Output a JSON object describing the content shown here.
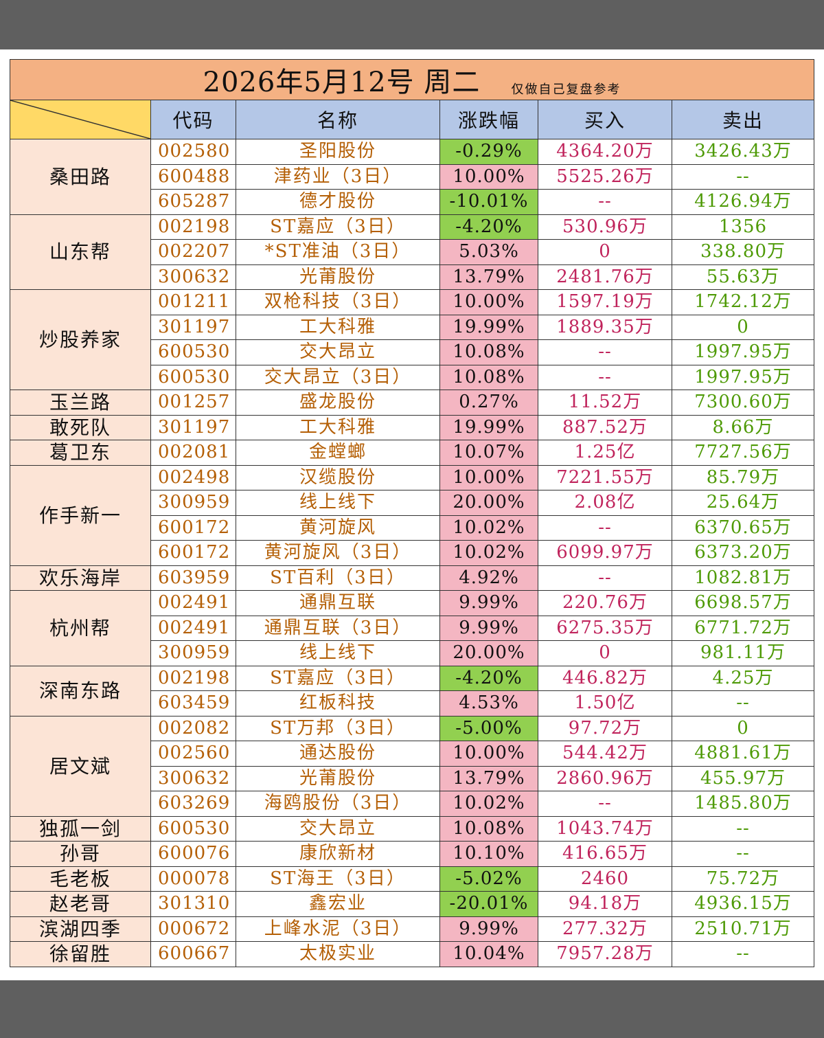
{
  "title": {
    "date": "2026年5月12号  周二",
    "note": "仅做自己复盘参考"
  },
  "headers": {
    "code": "代码",
    "name": "名称",
    "change": "涨跌幅",
    "buy": "买入",
    "sell": "卖出"
  },
  "colors": {
    "up": "#f4b6c2",
    "down": "#92d050",
    "header": "#b4c7e7",
    "title": "#f4b183",
    "group": "#fce4d6"
  },
  "rows": [
    {
      "group": "桑田路",
      "span": 3,
      "code": "002580",
      "name": "圣阳股份",
      "change": "-0.29%",
      "dir": "down",
      "buy": "4364.20万",
      "sell": "3426.43万"
    },
    {
      "code": "600488",
      "name": "津药业（3日）",
      "change": "10.00%",
      "dir": "up",
      "buy": "5525.26万",
      "sell": "--"
    },
    {
      "code": "605287",
      "name": "德才股份",
      "change": "-10.01%",
      "dir": "down",
      "buy": "--",
      "sell": "4126.94万"
    },
    {
      "group": "山东帮",
      "span": 3,
      "code": "002198",
      "name": "ST嘉应（3日）",
      "change": "-4.20%",
      "dir": "down",
      "buy": "530.96万",
      "sell": "1356"
    },
    {
      "code": "002207",
      "name": "*ST准油（3日）",
      "change": "5.03%",
      "dir": "up",
      "buy": "0",
      "sell": "338.80万"
    },
    {
      "code": "300632",
      "name": "光莆股份",
      "change": "13.79%",
      "dir": "up",
      "buy": "2481.76万",
      "sell": "55.63万"
    },
    {
      "group": "炒股养家",
      "span": 4,
      "code": "001211",
      "name": "双枪科技（3日）",
      "change": "10.00%",
      "dir": "up",
      "buy": "1597.19万",
      "sell": "1742.12万"
    },
    {
      "code": "301197",
      "name": "工大科雅",
      "change": "19.99%",
      "dir": "up",
      "buy": "1889.35万",
      "sell": "0"
    },
    {
      "code": "600530",
      "name": "交大昂立",
      "change": "10.08%",
      "dir": "up",
      "buy": "--",
      "sell": "1997.95万"
    },
    {
      "code": "600530",
      "name": "交大昂立（3日）",
      "change": "10.08%",
      "dir": "up",
      "buy": "--",
      "sell": "1997.95万"
    },
    {
      "group": "玉兰路",
      "span": 1,
      "code": "001257",
      "name": "盛龙股份",
      "change": "0.27%",
      "dir": "up",
      "buy": "11.52万",
      "sell": "7300.60万"
    },
    {
      "group": "敢死队",
      "span": 1,
      "code": "301197",
      "name": "工大科雅",
      "change": "19.99%",
      "dir": "up",
      "buy": "887.52万",
      "sell": "8.66万"
    },
    {
      "group": "葛卫东",
      "span": 1,
      "code": "002081",
      "name": "金螳螂",
      "change": "10.07%",
      "dir": "up",
      "buy": "1.25亿",
      "sell": "7727.56万"
    },
    {
      "group": "作手新一",
      "span": 4,
      "code": "002498",
      "name": "汉缆股份",
      "change": "10.00%",
      "dir": "up",
      "buy": "7221.55万",
      "sell": "85.79万"
    },
    {
      "code": "300959",
      "name": "线上线下",
      "change": "20.00%",
      "dir": "up",
      "buy": "2.08亿",
      "sell": "25.64万"
    },
    {
      "code": "600172",
      "name": "黄河旋风",
      "change": "10.02%",
      "dir": "up",
      "buy": "--",
      "sell": "6370.65万"
    },
    {
      "code": "600172",
      "name": "黄河旋风（3日）",
      "change": "10.02%",
      "dir": "up",
      "buy": "6099.97万",
      "sell": "6373.20万"
    },
    {
      "group": "欢乐海岸",
      "span": 1,
      "code": "603959",
      "name": "ST百利（3日）",
      "change": "4.92%",
      "dir": "up",
      "buy": "--",
      "sell": "1082.81万"
    },
    {
      "group": "杭州帮",
      "span": 3,
      "code": "002491",
      "name": "通鼎互联",
      "change": "9.99%",
      "dir": "up",
      "buy": "220.76万",
      "sell": "6698.57万"
    },
    {
      "code": "002491",
      "name": "通鼎互联（3日）",
      "change": "9.99%",
      "dir": "up",
      "buy": "6275.35万",
      "sell": "6771.72万"
    },
    {
      "code": "300959",
      "name": "线上线下",
      "change": "20.00%",
      "dir": "up",
      "buy": "0",
      "sell": "981.11万"
    },
    {
      "group": "深南东路",
      "span": 2,
      "code": "002198",
      "name": "ST嘉应（3日）",
      "change": "-4.20%",
      "dir": "down",
      "buy": "446.82万",
      "sell": "4.25万"
    },
    {
      "code": "603459",
      "name": "红板科技",
      "change": "4.53%",
      "dir": "up",
      "buy": "1.50亿",
      "sell": "--"
    },
    {
      "group": "居文斌",
      "span": 4,
      "code": "002082",
      "name": "ST万邦（3日）",
      "change": "-5.00%",
      "dir": "down",
      "buy": "97.72万",
      "sell": "0"
    },
    {
      "code": "002560",
      "name": "通达股份",
      "change": "10.00%",
      "dir": "up",
      "buy": "544.42万",
      "sell": "4881.61万"
    },
    {
      "code": "300632",
      "name": "光莆股份",
      "change": "13.79%",
      "dir": "up",
      "buy": "2860.96万",
      "sell": "455.97万"
    },
    {
      "code": "603269",
      "name": "海鸥股份（3日）",
      "change": "10.02%",
      "dir": "up",
      "buy": "--",
      "sell": "1485.80万"
    },
    {
      "group": "独孤一剑",
      "span": 1,
      "code": "600530",
      "name": "交大昂立",
      "change": "10.08%",
      "dir": "up",
      "buy": "1043.74万",
      "sell": "--"
    },
    {
      "group": "孙哥",
      "span": 1,
      "code": "600076",
      "name": "康欣新材",
      "change": "10.10%",
      "dir": "up",
      "buy": "416.65万",
      "sell": "--"
    },
    {
      "group": "毛老板",
      "span": 1,
      "code": "000078",
      "name": "ST海王（3日）",
      "change": "-5.02%",
      "dir": "down",
      "buy": "2460",
      "sell": "75.72万"
    },
    {
      "group": "赵老哥",
      "span": 1,
      "code": "301310",
      "name": "鑫宏业",
      "change": "-20.01%",
      "dir": "down",
      "buy": "94.18万",
      "sell": "4936.15万"
    },
    {
      "group": "滨湖四季",
      "span": 1,
      "code": "000672",
      "name": "上峰水泥（3日）",
      "change": "9.99%",
      "dir": "up",
      "buy": "277.32万",
      "sell": "2510.71万"
    },
    {
      "group": "徐留胜",
      "span": 1,
      "code": "600667",
      "name": "太极实业",
      "change": "10.04%",
      "dir": "up",
      "buy": "7957.28万",
      "sell": "--"
    }
  ]
}
